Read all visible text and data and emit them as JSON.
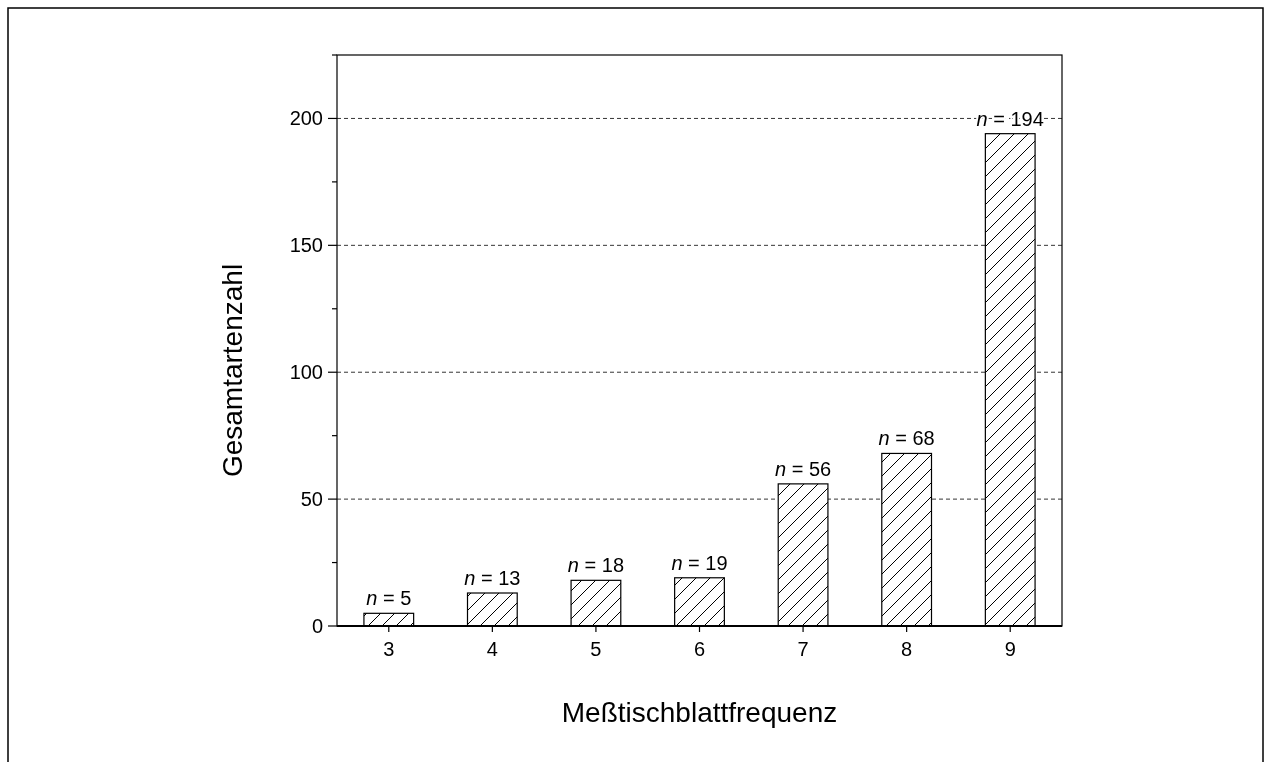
{
  "chart_data": {
    "type": "bar",
    "xlabel": "Meßtischblattfrequenz",
    "ylabel": "Gesamtartenzahl",
    "categories": [
      "3",
      "4",
      "5",
      "6",
      "7",
      "8",
      "9"
    ],
    "values": [
      5,
      13,
      18,
      19,
      56,
      68,
      194
    ],
    "value_labels": [
      "n = 5",
      "n = 13",
      "n = 18",
      "n = 19",
      "n = 56",
      "n = 68",
      "n = 194"
    ],
    "color": "#000000",
    "ylim": [
      0,
      225
    ],
    "yticks": [
      0,
      {
        "value": 25,
        "label": null
      },
      50,
      {
        "value": 75,
        "label": null
      },
      100,
      {
        "value": 125,
        "label": null
      },
      150,
      {
        "value": 175,
        "label": null
      },
      200,
      {
        "value": 225,
        "label": null
      }
    ],
    "grid": "y"
  }
}
